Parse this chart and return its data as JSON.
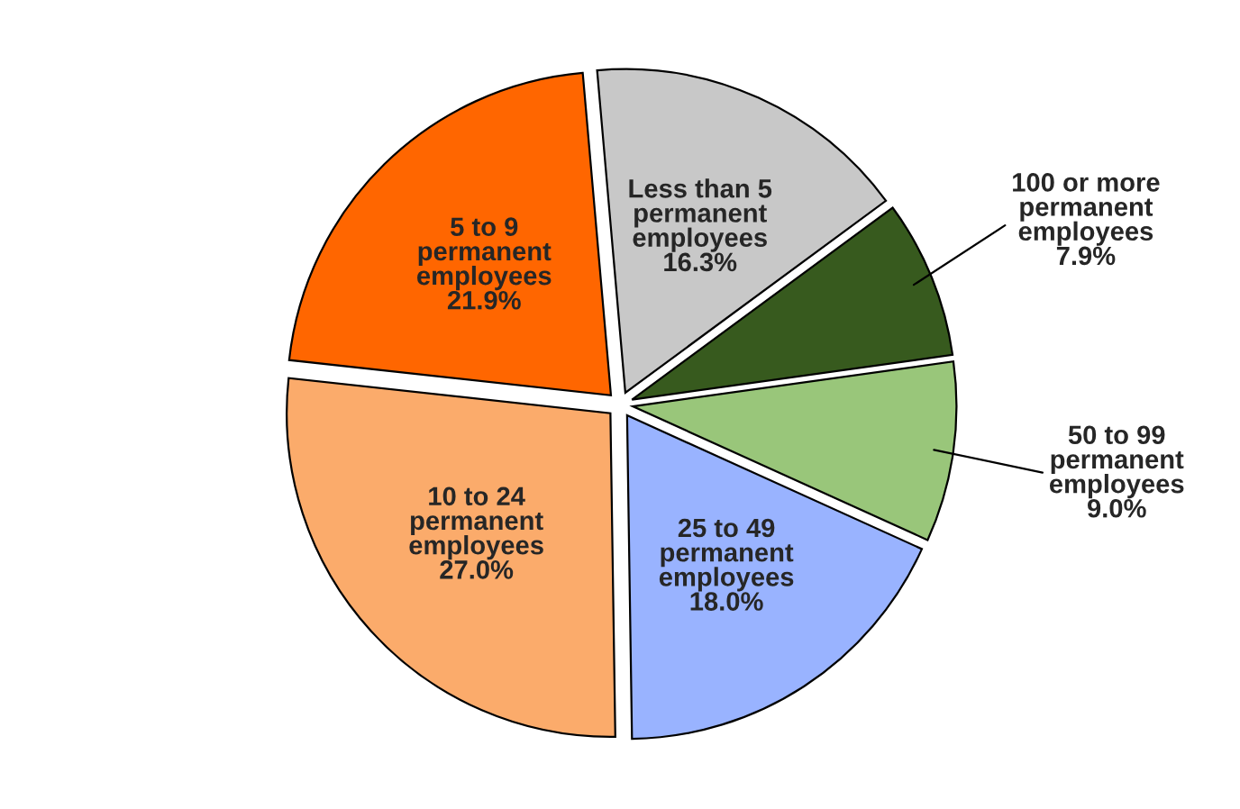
{
  "chart_data": {
    "type": "pie",
    "categories": [
      "Less than 5\npermanent\nemployees",
      "100 or more\npermanent\nemployees",
      "50 to 99\npermanent\nemployees",
      "25 to 49\npermanent\nemployees",
      "10 to 24\npermanent\nemployees",
      "5 to 9\npermanent\nemployees"
    ],
    "values": [
      16.3,
      7.9,
      9.0,
      18.0,
      27.0,
      21.9
    ],
    "value_labels": [
      "16.3%",
      "7.9%",
      "9.0%",
      "18.0%",
      "27.0%",
      "21.9%"
    ],
    "colors": [
      "#c8c8c8",
      "#375a1e",
      "#99c67a",
      "#99b3ff",
      "#fbab6b",
      "#ff6600"
    ]
  }
}
